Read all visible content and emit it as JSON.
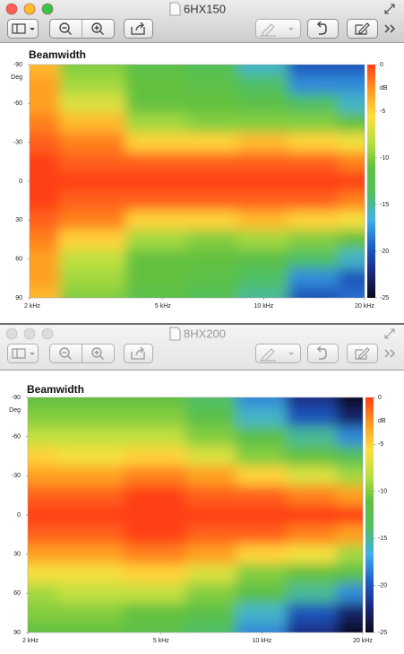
{
  "windows": [
    {
      "title": "6HX150",
      "active": true
    },
    {
      "title": "8HX200",
      "active": false
    }
  ],
  "chart_data": [
    {
      "type": "heatmap",
      "title": "Beamwidth",
      "y_label": "Deg",
      "x": [
        2000,
        3000,
        5000,
        7000,
        10000,
        14000,
        20000
      ],
      "y": [
        -90,
        -75,
        -60,
        -45,
        -30,
        -15,
        0,
        15,
        30,
        45,
        60,
        75,
        90
      ],
      "z": [
        [
          -4,
          -10,
          -12,
          -13,
          -16,
          -20,
          -20
        ],
        [
          -3,
          -9,
          -11,
          -12,
          -14,
          -18,
          -18
        ],
        [
          -3,
          -7,
          -11,
          -11,
          -12,
          -14,
          -16
        ],
        [
          -2,
          -4,
          -9,
          -10,
          -10,
          -10,
          -11
        ],
        [
          -1,
          -2,
          -5,
          -5,
          -4,
          -5,
          -6
        ],
        [
          0,
          -1,
          -1,
          -1,
          -1,
          -1,
          -2
        ],
        [
          0,
          0,
          0,
          0,
          0,
          0,
          0
        ],
        [
          0,
          -1,
          -1,
          -1,
          -1,
          -1,
          -2
        ],
        [
          -1,
          -2,
          -5,
          -5,
          -4,
          -5,
          -6
        ],
        [
          -2,
          -5,
          -9,
          -10,
          -9,
          -10,
          -11
        ],
        [
          -3,
          -8,
          -11,
          -11,
          -12,
          -14,
          -16
        ],
        [
          -3,
          -9,
          -11,
          -12,
          -14,
          -18,
          -20
        ],
        [
          -4,
          -10,
          -12,
          -13,
          -15,
          -20,
          -19
        ]
      ],
      "xscale": "log",
      "xlim": [
        2000,
        20000
      ],
      "xticks": [
        {
          "value": 2000,
          "label": "2 kHz"
        },
        {
          "value": 5000,
          "label": "5 kHz"
        },
        {
          "value": 10000,
          "label": "10 kHz"
        },
        {
          "value": 20000,
          "label": "20 kHz"
        }
      ],
      "ylim": [
        -90,
        90
      ],
      "y_inverted": true,
      "yticks": [
        -90,
        -60,
        -30,
        0,
        30,
        60,
        90
      ],
      "colorbar": {
        "label": "dB",
        "zlim": [
          -25,
          0
        ],
        "ticks": [
          0,
          -5,
          -10,
          -15,
          -20,
          -25
        ],
        "colormap": [
          "#0a0a1e",
          "#1a2a80",
          "#2060c8",
          "#40b0e8",
          "#50c060",
          "#60c040",
          "#b8e040",
          "#ffe040",
          "#ff9a20",
          "#ff4018"
        ]
      }
    },
    {
      "type": "heatmap",
      "title": "Beamwidth",
      "y_label": "Deg",
      "x": [
        2000,
        3000,
        5000,
        7000,
        10000,
        14000,
        20000
      ],
      "y": [
        -90,
        -75,
        -60,
        -45,
        -30,
        -15,
        0,
        15,
        30,
        45,
        60,
        75,
        90
      ],
      "z": [
        [
          -11,
          -11,
          -11,
          -14,
          -18,
          -22,
          -25
        ],
        [
          -10,
          -10,
          -10,
          -12,
          -16,
          -20,
          -23
        ],
        [
          -8,
          -8,
          -8,
          -10,
          -12,
          -15,
          -18
        ],
        [
          -5,
          -6,
          -5,
          -7,
          -10,
          -11,
          -13
        ],
        [
          -3,
          -3,
          -2,
          -3,
          -5,
          -7,
          -9
        ],
        [
          -1,
          -1,
          0,
          -1,
          -1,
          -2,
          -3
        ],
        [
          0,
          0,
          0,
          0,
          0,
          0,
          0
        ],
        [
          -1,
          -1,
          0,
          -1,
          -1,
          -2,
          -3
        ],
        [
          -3,
          -3,
          -2,
          -3,
          -5,
          -6,
          -9
        ],
        [
          -6,
          -6,
          -5,
          -7,
          -10,
          -11,
          -12
        ],
        [
          -9,
          -8,
          -8,
          -10,
          -12,
          -15,
          -18
        ],
        [
          -10,
          -10,
          -11,
          -12,
          -16,
          -20,
          -23
        ],
        [
          -11,
          -11,
          -12,
          -14,
          -18,
          -22,
          -25
        ]
      ],
      "xscale": "log",
      "xlim": [
        2000,
        20000
      ],
      "xticks": [
        {
          "value": 2000,
          "label": "2 kHz"
        },
        {
          "value": 5000,
          "label": "5 kHz"
        },
        {
          "value": 10000,
          "label": "10 kHz"
        },
        {
          "value": 20000,
          "label": "20 kHz"
        }
      ],
      "ylim": [
        -90,
        90
      ],
      "y_inverted": true,
      "yticks": [
        -90,
        -60,
        -30,
        0,
        30,
        60,
        90
      ],
      "colorbar": {
        "label": "dB",
        "zlim": [
          -25,
          0
        ],
        "ticks": [
          0,
          -5,
          -10,
          -15,
          -20,
          -25
        ],
        "colormap": [
          "#0a0a1e",
          "#1a2a80",
          "#2060c8",
          "#40b0e8",
          "#50c060",
          "#60c040",
          "#b8e040",
          "#ffe040",
          "#ff9a20",
          "#ff4018"
        ]
      }
    }
  ]
}
